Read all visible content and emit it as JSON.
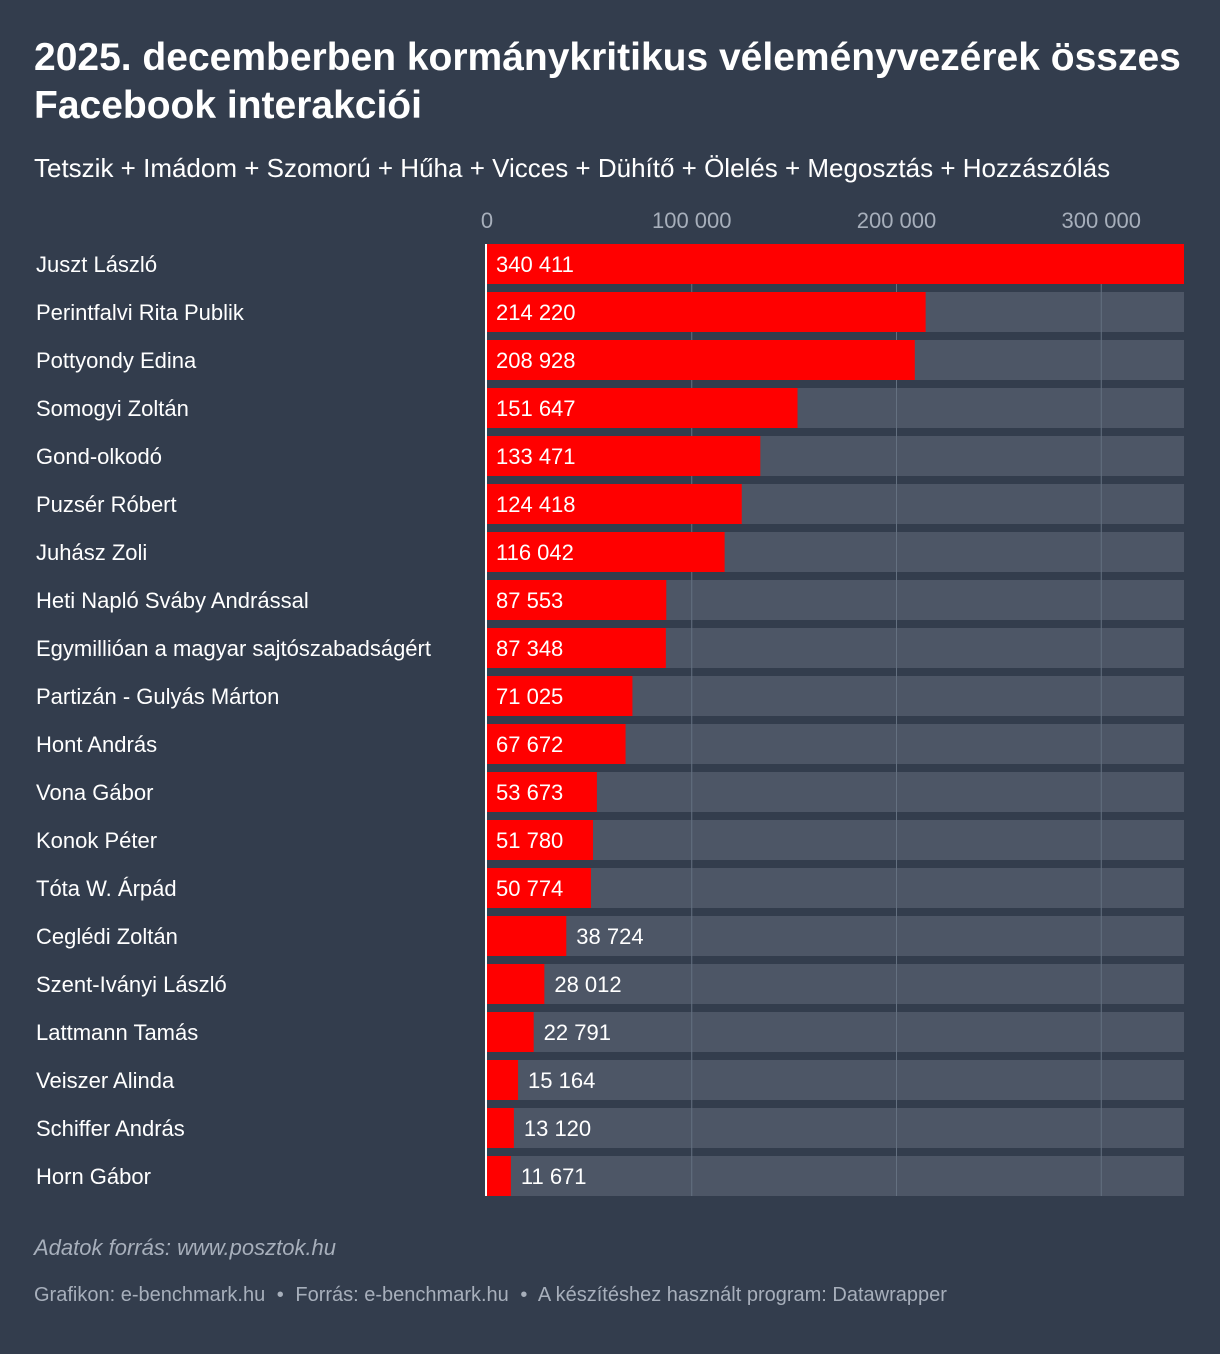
{
  "header": {
    "title": "2025. decemberben kormánykritikus véleményvezérek összes Facebook interakciói",
    "subtitle": "Tetszik + Imádom + Szomorú + Hűha + Vicces + Dühítő + Ölelés + Megosztás + Hozzászólás"
  },
  "chart_data": {
    "type": "bar",
    "orientation": "horizontal",
    "title": "2025. decemberben kormánykritikus véleményvezérek összes Facebook interakciói",
    "xlabel": "",
    "ylabel": "",
    "xlim": [
      0,
      340411
    ],
    "ticks": [
      0,
      100000,
      200000,
      300000
    ],
    "tick_labels": [
      "0",
      "100 000",
      "200 000",
      "300 000"
    ],
    "grid": true,
    "categories": [
      "Juszt László",
      "Perintfalvi Rita Publik",
      "Pottyondy Edina",
      "Somogyi Zoltán",
      "Gond-olkodó",
      "Puzsér Róbert",
      "Juhász Zoli",
      "Heti Napló Sváby Andrással",
      "Egymillióan a magyar sajtószabadságért",
      "Partizán - Gulyás Márton",
      "Hont András",
      "Vona Gábor",
      "Konok Péter",
      "Tóta W. Árpád",
      "Ceglédi Zoltán",
      "Szent-Iványi László",
      "Lattmann Tamás",
      "Veiszer Alinda",
      "Schiffer András",
      "Horn Gábor"
    ],
    "values": [
      340411,
      214220,
      208928,
      151647,
      133471,
      124418,
      116042,
      87553,
      87348,
      71025,
      67672,
      53673,
      51780,
      50774,
      38724,
      28012,
      22791,
      15164,
      13120,
      11671
    ],
    "value_labels": [
      "340 411",
      "214 220",
      "208 928",
      "151 647",
      "133 471",
      "124 418",
      "116 042",
      "87 553",
      "87 348",
      "71 025",
      "67 672",
      "53 673",
      "51 780",
      "50 774",
      "38 724",
      "28 012",
      "22 791",
      "15 164",
      "13 120",
      "11 671"
    ],
    "colors": {
      "bar": "#ff0000",
      "track": "#4d5666",
      "background": "#333d4d",
      "grid": "#657081",
      "baseline": "#ffffff"
    }
  },
  "footer": {
    "note": "Adatok forrás: www.posztok.hu",
    "credit_graph": "Grafikon: e-benchmark.hu",
    "credit_source": "Forrás: e-benchmark.hu",
    "credit_tool": "A készítéshez használt program: Datawrapper",
    "separator": "•"
  }
}
